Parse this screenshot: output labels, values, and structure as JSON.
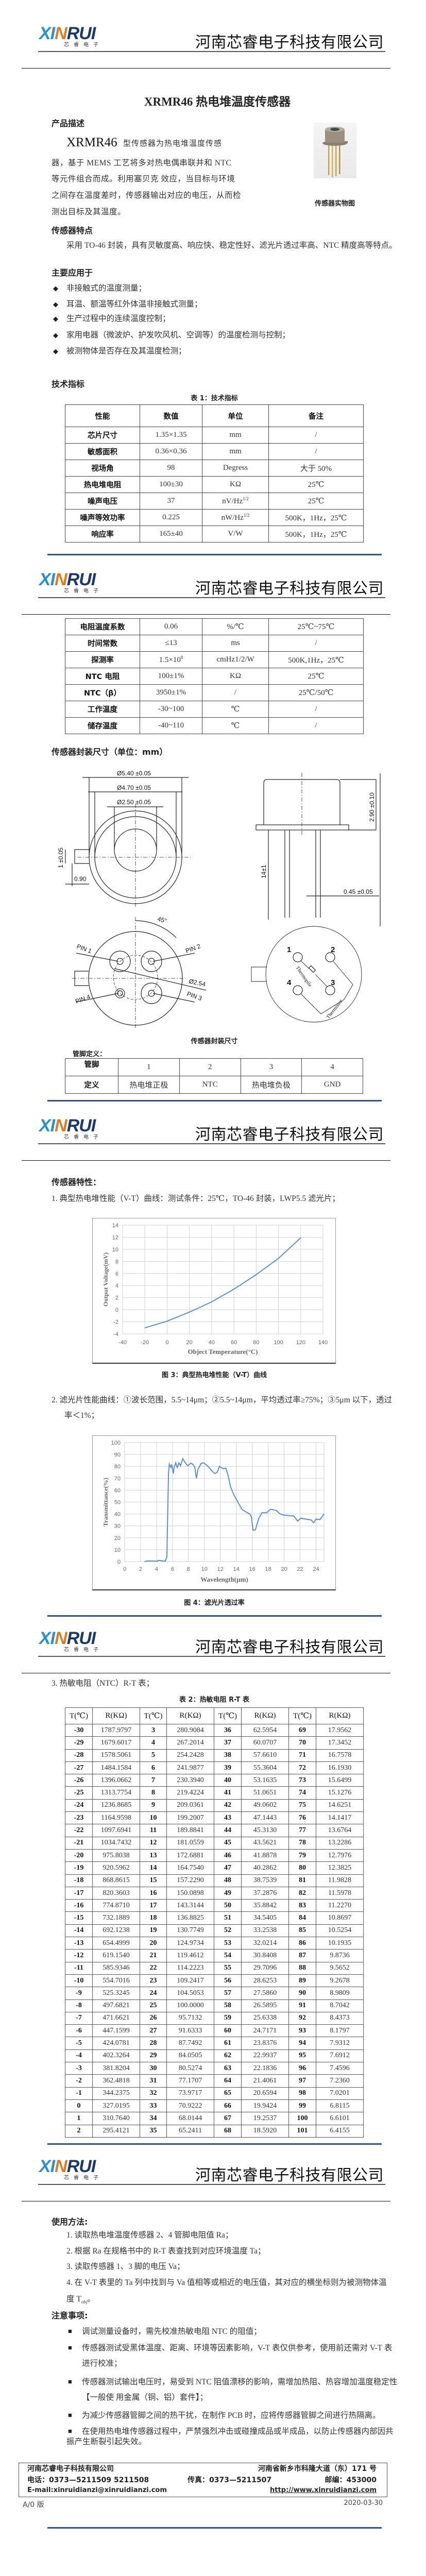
{
  "header": {
    "logo_text": "XINRUI",
    "logo_sub": "芯睿电子",
    "company": "河南芯睿电子科技有限公司"
  },
  "page1": {
    "title": "XRMR46 热电堆温度传感器",
    "desc_heading": "产品描述",
    "desc_model": "XRMR46",
    "desc_lines": [
      "型传感器为热电堆温度传感",
      "器，基于 MEMS 工艺将多对热电偶串联并和 NTC",
      "等元件组合而成。利用塞贝克 效应，当目标与环境",
      "之间存在温度差时，传感器输出对应的电压，从而检",
      "测出目标及其温度。"
    ],
    "photo_caption": "传感器实物图",
    "features_heading": "传感器特点",
    "features_text": "采用 TO-46 封装，具有灵敏度高、响应快、稳定性好、滤光片透过率高、NTC 精度高等特点。",
    "apps_heading": "主要应用于",
    "apps": [
      "非接触式的温度测量；",
      "耳温、额温等红外体温非接触式测量；",
      "生产过程中的连续温度控制；",
      "家用电器（微波炉、护发吹风机、空调等）的温度检测与控制；",
      "被测物体是否存在及其温度检测；"
    ],
    "spec_heading": "技术指标",
    "table_caption": "表 1：技术指标"
  },
  "spec_table": {
    "headers": [
      "性能",
      "数值",
      "单位",
      "备注"
    ],
    "rows_page1": [
      {
        "name": "芯片尺寸",
        "value": "1.35×1.35",
        "unit": "mm",
        "note": "/"
      },
      {
        "name": "敏感面积",
        "value": "0.36×0.36",
        "unit": "mm",
        "note": "/"
      },
      {
        "name": "视场角",
        "value": "98",
        "unit": "Degress",
        "note": "大于 50%"
      },
      {
        "name": "热电堆电阻",
        "value": "100±30",
        "unit": "KΩ",
        "note": "25℃"
      },
      {
        "name": "噪声电压",
        "value": "37",
        "unit": "nV/Hz",
        "unit_sup": "1/2",
        "note": "25℃"
      },
      {
        "name": "噪声等效功率",
        "value": "0.225",
        "unit": "nW/Hz",
        "unit_sup": "1/2",
        "note": "500K，1Hz，25℃"
      },
      {
        "name": "响应率",
        "value": "165±40",
        "unit": "V/W",
        "note": "500K，1Hz，25℃"
      }
    ],
    "rows_page2": [
      {
        "name": "电阻温度系数",
        "value": "0.06",
        "unit": "%/℃",
        "note": "25℃~75℃"
      },
      {
        "name": "时间常数",
        "value": "≤13",
        "unit": "ms",
        "note": "/"
      },
      {
        "name": "探测率",
        "value": "1.5×10",
        "value_sup": "8",
        "unit": "cmHz1/2/W",
        "note": "500K,1Hz，25℃"
      },
      {
        "name": "NTC 电阻",
        "value": "100±1%",
        "unit": "KΩ",
        "note": "25℃"
      },
      {
        "name": "NTC（β）",
        "value": "3950±1%",
        "unit": "/",
        "note": "25℃/50℃"
      },
      {
        "name": "工作温度",
        "value": "-30~100",
        "unit": "℃",
        "note": "/"
      },
      {
        "name": "储存温度",
        "value": "-40~110",
        "unit": "℃",
        "note": "/"
      }
    ]
  },
  "page2": {
    "drawing_heading": "传感器封装尺寸（单位：mm）",
    "drawing_caption": "传感器封装尺寸",
    "drawing_labels": {
      "d540": "Ø5.40 ±0.05",
      "d470": "Ø4.70 ±0.05",
      "d250": "Ø2.50 ±0.05",
      "tab": "1 ±0.05",
      "w090": "0.90",
      "h290": "2.90 ±0.10",
      "len": "14±1",
      "pin_d": "0.45 ±0.05",
      "angle": "45°",
      "pin1": "PIN 1",
      "pin2": "PIN 2",
      "pin3": "PIN 3",
      "pin4": "PIN 4",
      "pcd": "Ø2.54",
      "n1": "1",
      "n2": "2",
      "n3": "3",
      "n4": "4",
      "thermopile": "Thermopile",
      "thermistor": "Thermistor"
    },
    "pin_heading": "管脚定义：",
    "pin_table": {
      "row1_label": "管脚",
      "pins": [
        "1",
        "2",
        "3",
        "4"
      ],
      "row2_label": "定义",
      "defs": [
        "热电堆正极",
        "NTC",
        "热电堆负极",
        "GND"
      ]
    }
  },
  "page3": {
    "heading": "传感器特性：",
    "item1": "1.   典型热电堆性能（V-T）曲线：测试条件：25℃，TO-46 封装，LWP5.5 滤光片；",
    "fig3_caption": "图 3：典型热电堆性能（V-T）曲线",
    "item2_line1": "2.   滤光片性能曲线：①波长范围，5.5~14μm；②5.5~14μm，平均透过率≥75%；③5μm 以下，透过",
    "item2_line2": "率＜1%；",
    "fig4_caption": "图 4：滤光片透过率"
  },
  "chart_data": [
    {
      "type": "line",
      "xlabel": "Object Temperature(°C)",
      "ylabel": "Output Voltage(mV)",
      "xlim": [
        -40,
        140
      ],
      "ylim": [
        -4,
        14
      ],
      "x_ticks": [
        "-40",
        "-20",
        "0",
        "20",
        "40",
        "60",
        "80",
        "100",
        "120",
        "140"
      ],
      "y_ticks": [
        "-4",
        "-2",
        "0",
        "2",
        "4",
        "6",
        "8",
        "10",
        "12",
        "14"
      ],
      "grid": true,
      "color": "#5b8fc7",
      "x": [
        -20,
        0,
        20,
        40,
        60,
        80,
        100,
        120
      ],
      "y": [
        -3.0,
        -1.9,
        -0.4,
        1.3,
        3.4,
        5.8,
        8.5,
        11.9
      ]
    },
    {
      "type": "line",
      "xlabel": "Wavelength(μm)",
      "ylabel": "Transmittance(%)",
      "xlim": [
        0,
        25
      ],
      "ylim": [
        0,
        100
      ],
      "x_ticks": [
        "0",
        "2",
        "4",
        "6",
        "8",
        "10",
        "12",
        "14",
        "16",
        "18",
        "20",
        "22",
        "24"
      ],
      "y_ticks": [
        "0",
        "10",
        "20",
        "30",
        "40",
        "50",
        "60",
        "70",
        "80",
        "90",
        "100"
      ],
      "grid": true,
      "color": "#5b8fc7",
      "x": [
        2.5,
        2.9,
        4.1,
        4.2,
        5.1,
        5.3,
        5.4,
        5.5,
        5.6,
        5.8,
        5.9,
        6.0,
        6.1,
        6.2,
        6.4,
        6.6,
        6.8,
        7.0,
        7.3,
        7.5,
        7.9,
        8.3,
        8.6,
        8.8,
        9.0,
        9.2,
        9.6,
        9.9,
        10.3,
        10.6,
        10.9,
        11.3,
        11.6,
        11.9,
        12.1,
        12.4,
        12.7,
        13.0,
        13.3,
        13.7,
        14.0,
        14.4,
        14.7,
        15.2,
        15.7,
        15.9,
        16.1,
        16.4,
        16.8,
        17.2,
        17.8,
        18.3,
        19.0,
        19.5,
        20.0,
        20.7,
        21.2,
        21.7,
        22.1,
        22.7,
        23.4,
        23.7,
        24.0,
        24.5,
        25.0
      ],
      "y": [
        0,
        0.5,
        0.3,
        1,
        0.3,
        4,
        41,
        74,
        82,
        79,
        81.5,
        78,
        74,
        79,
        83,
        79,
        83,
        80.5,
        86.5,
        84,
        80.5,
        82.7,
        81.5,
        79,
        70,
        77.5,
        82.5,
        83,
        81,
        79,
        76.5,
        74,
        75,
        80,
        79,
        78,
        78.5,
        71.5,
        62.5,
        56,
        52.5,
        47.5,
        44,
        41.7,
        40,
        37.5,
        26.4,
        26.7,
        36,
        41,
        41,
        44,
        43,
        40,
        39,
        38.4,
        38.4,
        34,
        36.5,
        35.7,
        35,
        32.5,
        35.7,
        35.3,
        40
      ]
    }
  ],
  "page4": {
    "item3": "3.   热敏电阻（NTC）R-T 表；",
    "table_caption": "表 2：热敏电阻 R-T 表",
    "headers": [
      "T(℃)",
      "R(KΩ)",
      "T(℃)",
      "R(KΩ)",
      "T(℃)",
      "R(KΩ)",
      "T(℃)",
      "R(KΩ)"
    ],
    "rows": [
      [
        "-30",
        "1787.9797",
        "3",
        "280.9084",
        "36",
        "62.5954",
        "69",
        "17.9562"
      ],
      [
        "-29",
        "1679.6017",
        "4",
        "267.2014",
        "37",
        "60.0707",
        "70",
        "17.3452"
      ],
      [
        "-28",
        "1578.5061",
        "5",
        "254.2428",
        "38",
        "57.6610",
        "71",
        "16.7578"
      ],
      [
        "-27",
        "1484.1584",
        "6",
        "241.9877",
        "39",
        "55.3604",
        "72",
        "16.1930"
      ],
      [
        "-26",
        "1396.0662",
        "7",
        "230.3940",
        "40",
        "53.1635",
        "73",
        "15.6499"
      ],
      [
        "-25",
        "1313.7754",
        "8",
        "219.4224",
        "41",
        "51.0651",
        "74",
        "15.1276"
      ],
      [
        "-24",
        "1236.8685",
        "9",
        "209.0361",
        "42",
        "49.0602",
        "75",
        "14.6251"
      ],
      [
        "-23",
        "1164.9598",
        "10",
        "199.2007",
        "43",
        "47.1443",
        "76",
        "14.1417"
      ],
      [
        "-22",
        "1097.6941",
        "11",
        "189.8841",
        "44",
        "45.3130",
        "77",
        "13.6764"
      ],
      [
        "-21",
        "1034.7432",
        "12",
        "181.0559",
        "45",
        "43.5621",
        "78",
        "13.2286"
      ],
      [
        "-20",
        "975.8038",
        "13",
        "172.6881",
        "46",
        "41.8878",
        "79",
        "12.7976"
      ],
      [
        "-19",
        "920.5962",
        "14",
        "164.7540",
        "47",
        "40.2862",
        "80",
        "12.3825"
      ],
      [
        "-18",
        "868.8615",
        "15",
        "157.2290",
        "48",
        "38.7539",
        "81",
        "11.9828"
      ],
      [
        "-17",
        "820.3603",
        "16",
        "150.0898",
        "49",
        "37.2876",
        "82",
        "11.5978"
      ],
      [
        "-16",
        "774.8710",
        "17",
        "143.3144",
        "50",
        "35.8842",
        "83",
        "11.2270"
      ],
      [
        "-15",
        "732.1889",
        "18",
        "136.8825",
        "51",
        "34.5405",
        "84",
        "10.8697"
      ],
      [
        "-14",
        "692.1238",
        "19",
        "130.7749",
        "52",
        "33.2538",
        "85",
        "10.5254"
      ],
      [
        "-13",
        "654.4999",
        "20",
        "124.9734",
        "53",
        "32.0214",
        "86",
        "10.1935"
      ],
      [
        "-12",
        "619.1540",
        "21",
        "119.4612",
        "54",
        "30.8408",
        "87",
        "9.8736"
      ],
      [
        "-11",
        "585.9346",
        "22",
        "114.2223",
        "55",
        "29.7096",
        "88",
        "9.5652"
      ],
      [
        "-10",
        "554.7016",
        "23",
        "109.2417",
        "56",
        "28.6253",
        "89",
        "9.2678"
      ],
      [
        "-9",
        "525.3245",
        "24",
        "104.5053",
        "57",
        "27.5860",
        "90",
        "8.9809"
      ],
      [
        "-8",
        "497.6821",
        "25",
        "100.0000",
        "58",
        "26.5895",
        "91",
        "8.7042"
      ],
      [
        "-7",
        "471.6621",
        "26",
        "95.7132",
        "59",
        "25.6338",
        "92",
        "8.4373"
      ],
      [
        "-6",
        "447.1599",
        "27",
        "91.6333",
        "60",
        "24.7171",
        "93",
        "8.1797"
      ],
      [
        "-5",
        "424.0781",
        "28",
        "87.7492",
        "61",
        "23.8376",
        "94",
        "7.9312"
      ],
      [
        "-4",
        "402.3264",
        "29",
        "84.0505",
        "62",
        "22.9937",
        "95",
        "7.6912"
      ],
      [
        "-3",
        "381.8204",
        "30",
        "80.5274",
        "63",
        "22.1836",
        "96",
        "7.4596"
      ],
      [
        "-2",
        "362.4818",
        "31",
        "77.1707",
        "64",
        "21.4061",
        "97",
        "7.2360"
      ],
      [
        "-1",
        "344.2375",
        "32",
        "73.9717",
        "65",
        "20.6594",
        "98",
        "7.0201"
      ],
      [
        "0",
        "327.0195",
        "33",
        "70.9222",
        "66",
        "19.9424",
        "99",
        "6.8115"
      ],
      [
        "1",
        "310.7640",
        "34",
        "68.0144",
        "67",
        "19.2537",
        "100",
        "6.6101"
      ],
      [
        "2",
        "295.4121",
        "35",
        "65.2411",
        "68",
        "18.5920",
        "101",
        "6.4155"
      ]
    ]
  },
  "page5": {
    "usage_heading": "使用方法:",
    "usage": [
      "1. 读取热电堆温度传感器 2、4 管脚电阻值 Ra；",
      "2. 根据 Ra 在规格书中的 R-T  表查找到对应环境温度 Ta；",
      "3. 读取传感器 1、3  脚的电压 Va；",
      "4. 在  V-T 表里的  Ta 列中找到与  Va 值相等或相近的电压值，其对应的横坐标则为被测物体温"
    ],
    "usage_cont": "度 T",
    "usage_cont_sub": "obj",
    "usage_cont_end": "。",
    "notes_heading": "注意事项:",
    "notes": [
      "调试测量设备时，需先校准热敏电阻 NTC 的阻值；",
      "传感器测试受黑体温度、距离、环境等因素影响，V-T 表仅供参考，使用前还需对 V-T 表",
      "进行校准；",
      "传感器测试输出电压时，易受到  NTC 阻值漂移的影响，需增加热阻、热容增加温度稳定性",
      "【一般使 用金属（铜、铝）套件】；",
      "为减少传感器管脚之间的热干扰，在制作  PCB 时，应将传感器管脚之间进行热隔离。",
      "在使用热电堆传感器过程中，严禁强烈冲击或碰撞成品或半成品，以防止传感器内部因共",
      "振产生断裂引起失效。"
    ],
    "footer": {
      "company": "河南芯睿电子科技有限公司",
      "address": "河南省新乡市科隆大道（东）171 号",
      "phone": "电话：0373—5211509  5211508",
      "fax": "传真：0373—5211507",
      "postcode": "邮编：453000",
      "email": "E-mail:xinruidianzi@xinruidianzi.com",
      "website": "http://www.xinruidianzi.com"
    },
    "version": "A/0 版",
    "date": "2020-03-30"
  }
}
